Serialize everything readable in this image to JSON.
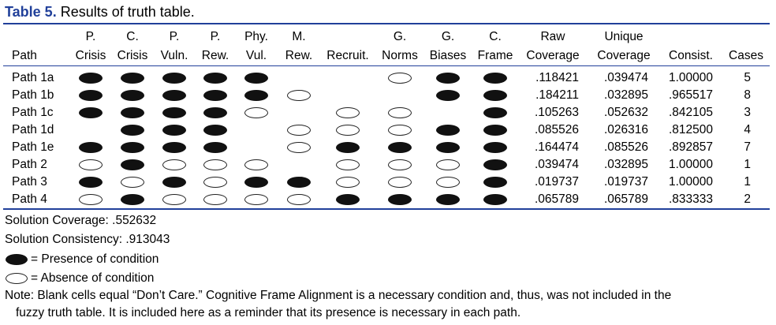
{
  "caption": {
    "label": "Table 5.",
    "title": "Results of truth table."
  },
  "headers": [
    {
      "key": "path",
      "line1": "",
      "line2": "Path"
    },
    {
      "key": "p_crisis",
      "line1": "P.",
      "line2": "Crisis"
    },
    {
      "key": "c_crisis",
      "line1": "C.",
      "line2": "Crisis"
    },
    {
      "key": "p_vuln",
      "line1": "P.",
      "line2": "Vuln."
    },
    {
      "key": "p_rew",
      "line1": "P.",
      "line2": "Rew."
    },
    {
      "key": "phy_vul",
      "line1": "Phy.",
      "line2": "Vul."
    },
    {
      "key": "m_rew",
      "line1": "M.",
      "line2": "Rew."
    },
    {
      "key": "recruit",
      "line1": "",
      "line2": "Recruit."
    },
    {
      "key": "g_norms",
      "line1": "G.",
      "line2": "Norms"
    },
    {
      "key": "g_biases",
      "line1": "G.",
      "line2": "Biases"
    },
    {
      "key": "c_frame",
      "line1": "C.",
      "line2": "Frame"
    },
    {
      "key": "raw_cov",
      "line1": "Raw",
      "line2": "Coverage"
    },
    {
      "key": "uniq_cov",
      "line1": "Unique",
      "line2": "Coverage"
    },
    {
      "key": "consist",
      "line1": "",
      "line2": "Consist."
    },
    {
      "key": "cases",
      "line1": "",
      "line2": "Cases"
    }
  ],
  "rows": [
    {
      "path": "Path 1a",
      "conditions": [
        "P",
        "P",
        "P",
        "P",
        "P",
        "",
        "",
        "A",
        "P",
        "P"
      ],
      "raw": ".118421",
      "unique": ".039474",
      "consist": "1.00000",
      "cases": "5"
    },
    {
      "path": "Path 1b",
      "conditions": [
        "P",
        "P",
        "P",
        "P",
        "P",
        "A",
        "",
        "",
        "P",
        "P"
      ],
      "raw": ".184211",
      "unique": ".032895",
      "consist": ".965517",
      "cases": "8"
    },
    {
      "path": "Path 1c",
      "conditions": [
        "P",
        "P",
        "P",
        "P",
        "A",
        "",
        "A",
        "A",
        "",
        "P"
      ],
      "raw": ".105263",
      "unique": ".052632",
      "consist": ".842105",
      "cases": "3"
    },
    {
      "path": "Path 1d",
      "conditions": [
        "",
        "P",
        "P",
        "P",
        "",
        "A",
        "A",
        "A",
        "P",
        "P"
      ],
      "raw": ".085526",
      "unique": ".026316",
      "consist": ".812500",
      "cases": "4"
    },
    {
      "path": "Path 1e",
      "conditions": [
        "P",
        "P",
        "P",
        "P",
        "",
        "A",
        "P",
        "P",
        "P",
        "P"
      ],
      "raw": ".164474",
      "unique": ".085526",
      "consist": ".892857",
      "cases": "7"
    },
    {
      "path": "Path 2",
      "conditions": [
        "A",
        "P",
        "A",
        "A",
        "A",
        "",
        "A",
        "A",
        "A",
        "P"
      ],
      "raw": ".039474",
      "unique": ".032895",
      "consist": "1.00000",
      "cases": "1"
    },
    {
      "path": "Path 3",
      "conditions": [
        "P",
        "A",
        "P",
        "A",
        "P",
        "P",
        "A",
        "A",
        "A",
        "P"
      ],
      "raw": ".019737",
      "unique": ".019737",
      "consist": "1.00000",
      "cases": "1"
    },
    {
      "path": "Path 4",
      "conditions": [
        "A",
        "P",
        "A",
        "A",
        "A",
        "A",
        "P",
        "P",
        "P",
        "P"
      ],
      "raw": ".065789",
      "unique": ".065789",
      "consist": ".833333",
      "cases": "2"
    }
  ],
  "footer": {
    "coverage": "Solution Coverage: .552632",
    "consistency": "Solution Consistency: .913043",
    "presence": "= Presence of condition",
    "absence": "= Absence of condition",
    "note_line1": "Note: Blank cells equal “Don’t Care.” Cognitive Frame Alignment is a necessary condition and, thus, was not included in the",
    "note_line2": "fuzzy truth table. It is included here as a reminder that its presence is necessary in each path."
  }
}
